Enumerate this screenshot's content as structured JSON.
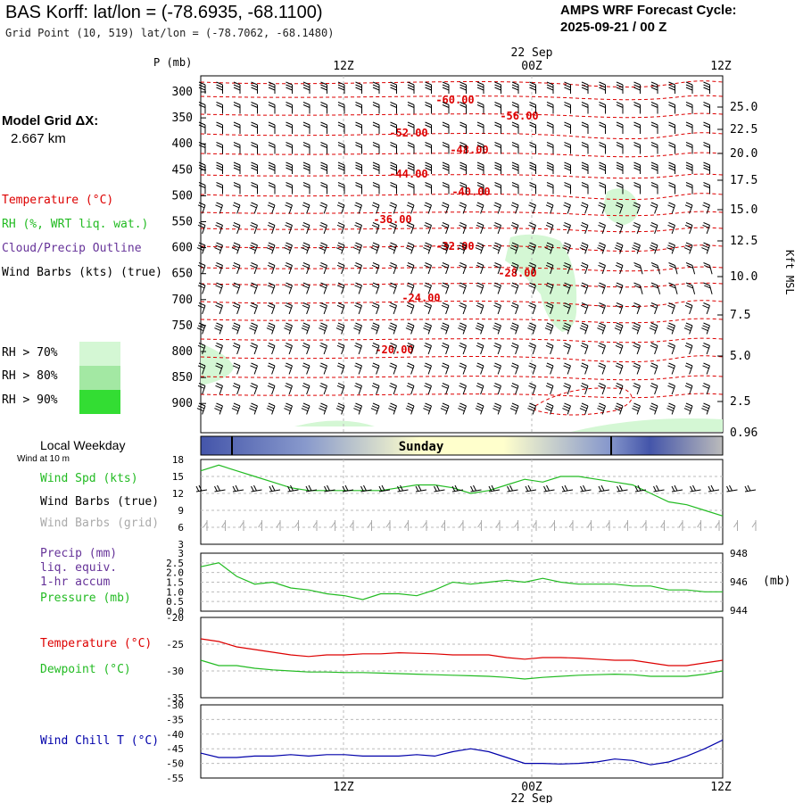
{
  "header": {
    "title": "BAS Korff:  lat/lon = (-78.6935, -68.1100)",
    "grid_point": "Grid Point (10, 519) lat/lon = (-78.7062, -68.1480)",
    "cycle_label": "AMPS WRF Forecast Cycle:",
    "cycle_value": "2025-09-21 / 00  Z"
  },
  "legend": {
    "model_grid_label": "Model Grid ΔX:",
    "model_grid_value": "2.667 km",
    "temperature": "Temperature (°C)",
    "rh": "RH (%, WRT liq. wat.)",
    "cloud": "Cloud/Precip Outline",
    "wind_barbs": "Wind Barbs (kts) (true)",
    "rh70": "RH > 70%",
    "rh80": "RH > 80%",
    "rh90": "RH > 90%",
    "rh_colors": [
      "#d4f7d4",
      "#a3e8a3",
      "#33dd33"
    ],
    "weekday_label": "Local Weekday",
    "wind10m_label": "Wind at 10 m",
    "weekday_name": "Sunday",
    "wind_spd": "Wind Spd (kts)",
    "wind_barbs_true": "Wind Barbs (true)",
    "wind_barbs_grid": "Wind Barbs (grid)",
    "precip": "Precip (mm)",
    "precip2": "liq. equiv.",
    "precip3": "1-hr accum",
    "pressure": "Pressure (mb)",
    "pressure_unit": "(mb)",
    "temp2": "Temperature (°C)",
    "dewpoint": "Dewpoint (°C)",
    "windchill": "Wind Chill T (°C)",
    "kft_label": "Kft MSL",
    "p_label": "P (mb)"
  },
  "colors": {
    "temperature": "#dd0000",
    "rh": "#22bb22",
    "cloud": "#663399",
    "windchill": "#0000aa",
    "grid_barbs": "#aaaaaa"
  },
  "chart_data": [
    {
      "type": "line",
      "name": "cross-section",
      "top_time_labels": [
        "12Z",
        "00Z",
        "12Z"
      ],
      "top_date_label": "22 Sep",
      "pressure_ticks": [
        "300",
        "350",
        "400",
        "450",
        "500",
        "550",
        "600",
        "650",
        "700",
        "750",
        "800",
        "850",
        "900"
      ],
      "height_ticks": [
        "25.0",
        "22.5",
        "20.0",
        "17.5",
        "15.0",
        "12.5",
        "10.0",
        "7.5",
        "5.0",
        "2.5",
        "0.96"
      ],
      "isotherm_labels": [
        "-60.00",
        "-56.00",
        "-52.00",
        "-48.00",
        "-44.00",
        "-40.00",
        "-36.00",
        "-32.00",
        "-28.00",
        "-24.00",
        "-20.00"
      ]
    },
    {
      "type": "line",
      "name": "wind-speed-10m",
      "ylim": [
        3,
        18
      ],
      "yticks": [
        "18",
        "15",
        "12",
        "9",
        "6",
        "3"
      ],
      "values": [
        16,
        17,
        16,
        15,
        14,
        13,
        12.5,
        12.5,
        12.5,
        12.5,
        12.5,
        13,
        13.5,
        13.5,
        13,
        12,
        12.5,
        13.5,
        14.5,
        14,
        15,
        15,
        14.5,
        14,
        13.5,
        12,
        10.5,
        10,
        9,
        8
      ]
    },
    {
      "type": "line",
      "name": "precip-pressure",
      "ylim": [
        0,
        3
      ],
      "yticks": [
        "3",
        "2.5",
        "2.0",
        "1.5",
        "1.0",
        "0.5",
        "0.0"
      ],
      "y2ticks": [
        "948",
        "946",
        "944"
      ],
      "values": [
        2.3,
        2.5,
        1.8,
        1.4,
        1.5,
        1.2,
        1.1,
        0.9,
        0.8,
        0.6,
        0.9,
        0.9,
        0.8,
        1.1,
        1.5,
        1.4,
        1.5,
        1.6,
        1.5,
        1.7,
        1.5,
        1.4,
        1.4,
        1.4,
        1.3,
        1.3,
        1.1,
        1.1,
        1.0,
        1.0
      ]
    },
    {
      "type": "line",
      "name": "temperature-dewpoint",
      "ylim": [
        -35,
        -20
      ],
      "yticks": [
        "-20",
        "-25",
        "-30",
        "-35"
      ],
      "temperature": [
        -24,
        -24.5,
        -25.5,
        -26,
        -26.5,
        -27,
        -27.3,
        -27,
        -27,
        -26.8,
        -26.8,
        -26.6,
        -26.7,
        -26.8,
        -27,
        -27,
        -27,
        -27.5,
        -27.8,
        -27.5,
        -27.5,
        -27.6,
        -27.8,
        -28,
        -28,
        -28.5,
        -29,
        -29,
        -28.5,
        -28
      ],
      "dewpoint": [
        -28,
        -29,
        -29,
        -29.5,
        -29.8,
        -30,
        -30.2,
        -30.2,
        -30.3,
        -30.3,
        -30.4,
        -30.5,
        -30.6,
        -30.7,
        -30.8,
        -30.9,
        -31,
        -31.2,
        -31.5,
        -31.2,
        -31,
        -30.8,
        -30.7,
        -30.6,
        -30.7,
        -31,
        -31,
        -31,
        -30.6,
        -30
      ]
    },
    {
      "type": "line",
      "name": "wind-chill",
      "ylim": [
        -55,
        -30
      ],
      "yticks": [
        "-30",
        "-35",
        "-40",
        "-45",
        "-50",
        "-55"
      ],
      "values": [
        -46.5,
        -48,
        -48,
        -47.5,
        -47.5,
        -47,
        -47.5,
        -47,
        -47,
        -47.5,
        -47.5,
        -47.5,
        -47,
        -47.5,
        -46,
        -45,
        -46,
        -48,
        -50,
        -50,
        -50.2,
        -50,
        -49.5,
        -48.5,
        -49,
        -50.5,
        -49.5,
        -47.5,
        -45,
        -42
      ]
    }
  ],
  "bottom_axis": {
    "time_labels": [
      "12Z",
      "00Z",
      "12Z"
    ],
    "date_label": "22 Sep"
  }
}
